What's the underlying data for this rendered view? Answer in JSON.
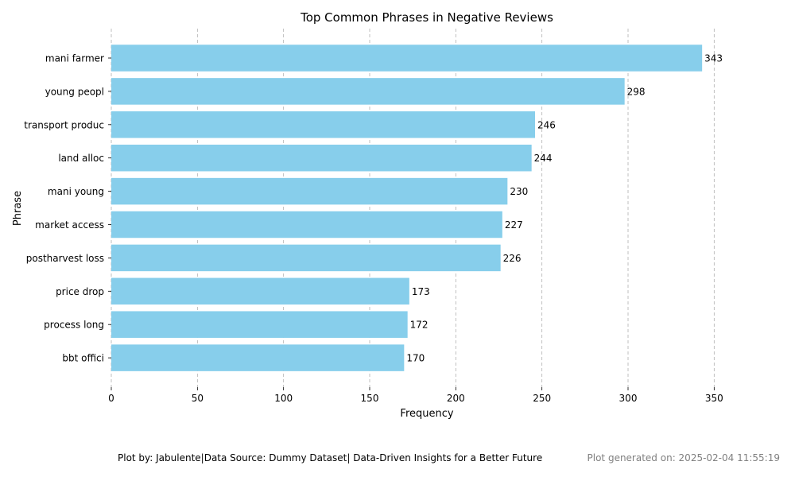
{
  "chart_data": {
    "type": "bar",
    "orientation": "horizontal",
    "title": "Top Common Phrases in Negative Reviews",
    "xlabel": "Frequency",
    "ylabel": "Phrase",
    "xlim": [
      0,
      360
    ],
    "xticks": [
      0,
      50,
      100,
      150,
      200,
      250,
      300,
      350
    ],
    "grid": "x-dashed",
    "bar_color": "#87CEEB",
    "categories": [
      "mani farmer",
      "young peopl",
      "transport produc",
      "land alloc",
      "mani young",
      "market access",
      "postharvest loss",
      "price drop",
      "process long",
      "bbt offici"
    ],
    "values": [
      343,
      298,
      246,
      244,
      230,
      227,
      226,
      173,
      172,
      170
    ]
  },
  "footer": {
    "credit": "Plot by: Jabulente|Data Source: Dummy Dataset| Data-Driven Insights for a Better Future",
    "generated": "Plot generated on: 2025-02-04 11:55:19"
  }
}
